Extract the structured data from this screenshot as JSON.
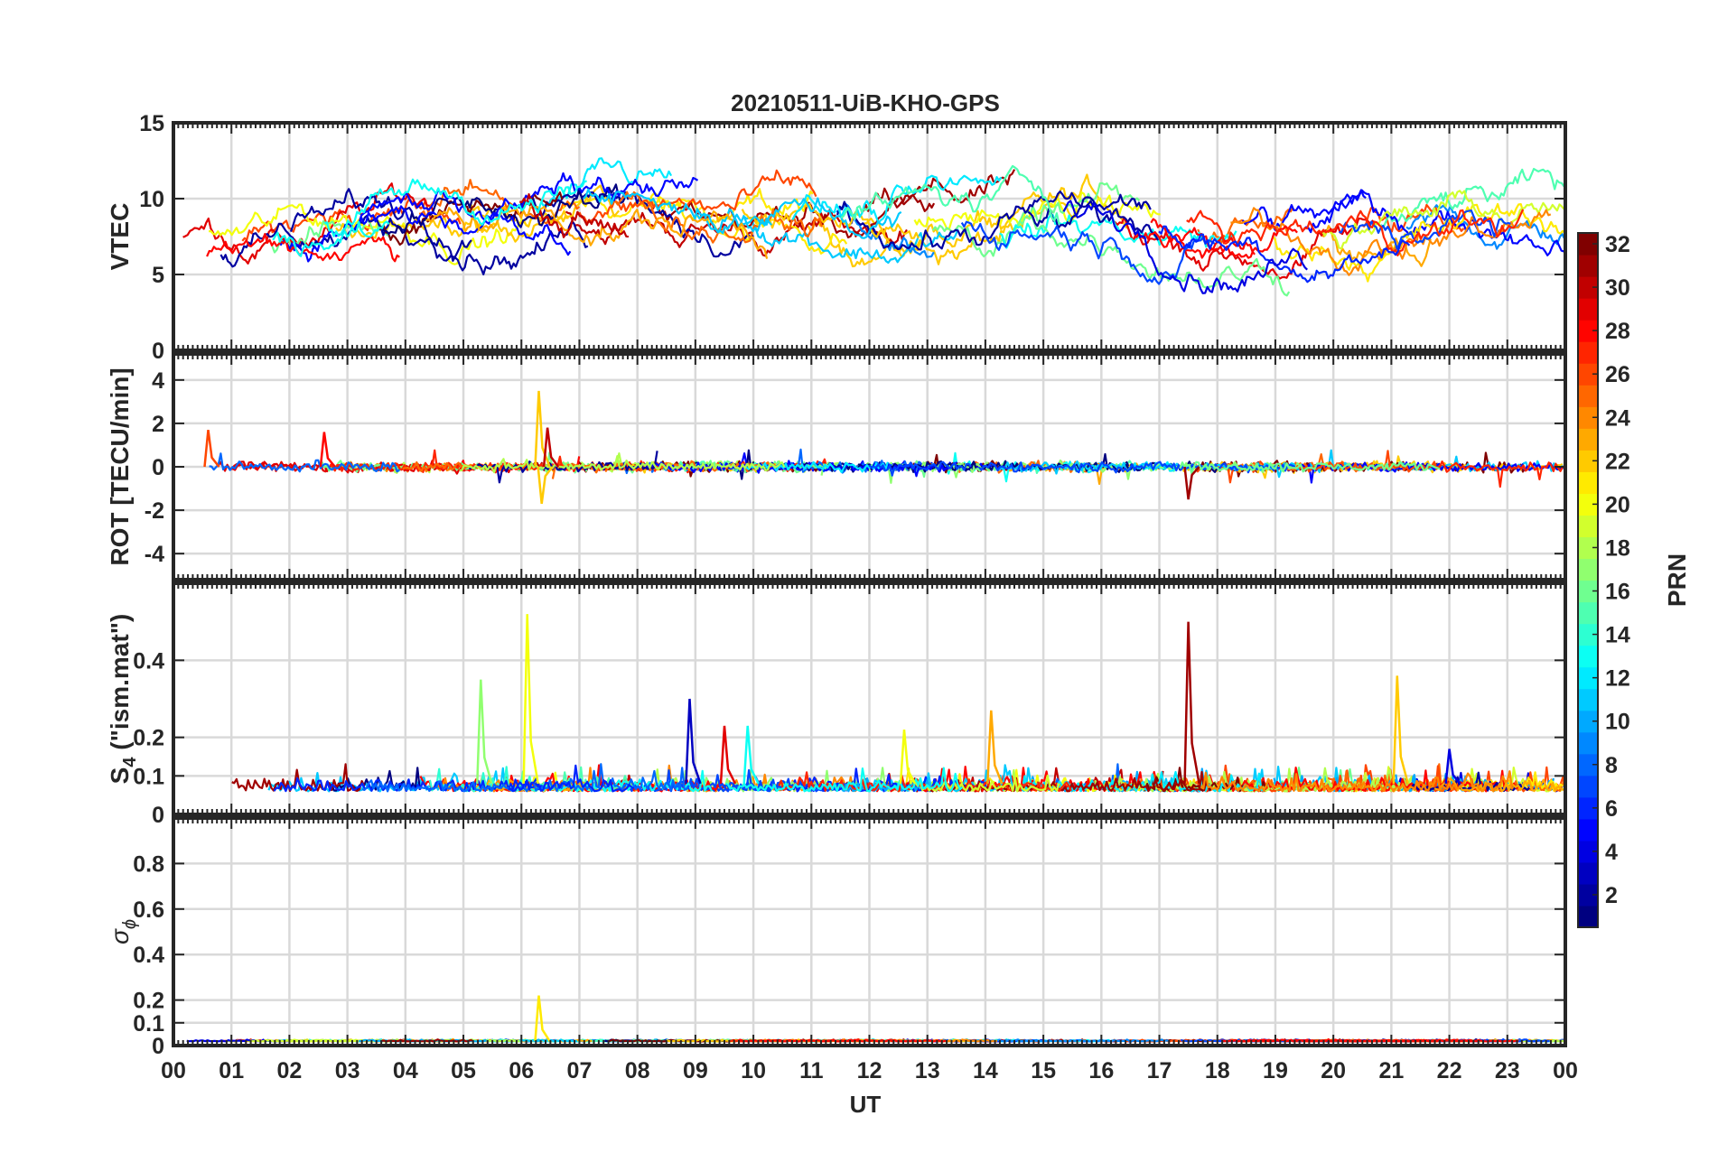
{
  "figure": {
    "title": "20210511-UiB-KHO-GPS"
  },
  "chart_data": [
    {
      "type": "line",
      "panel": "vtec",
      "ylabel": "VTEC",
      "ylim": [
        0,
        15
      ],
      "yticks": [
        "0",
        "5",
        "10",
        "15"
      ],
      "grid": true,
      "series_groups": [
        {
          "prn_range": [
            1,
            32
          ],
          "trend_hourly": [
            6.8,
            7.2,
            7.5,
            8.0,
            8.6,
            9.0,
            9.3,
            9.4,
            9.3,
            9.0,
            8.8,
            8.7,
            8.4,
            8.3,
            8.4,
            8.8,
            8.7,
            8.3,
            8.0,
            7.8,
            7.9,
            8.3,
            8.6,
            8.7,
            8.6
          ]
        }
      ]
    },
    {
      "type": "line",
      "panel": "rot",
      "ylabel": "ROT [TECU/min]",
      "ylim": [
        -5.2,
        5.2
      ],
      "yticks": [
        "-4",
        "-2",
        "0",
        "2",
        "4"
      ],
      "grid": true,
      "spikes": [
        {
          "ut": 0.6,
          "value": 1.7,
          "prn": 26
        },
        {
          "ut": 2.6,
          "value": 1.6,
          "prn": 28
        },
        {
          "ut": 6.3,
          "value": 3.5,
          "prn": 22
        },
        {
          "ut": 6.35,
          "value": -1.7,
          "prn": 22
        },
        {
          "ut": 6.45,
          "value": 1.8,
          "prn": 30
        },
        {
          "ut": 17.5,
          "value": -1.5,
          "prn": 31
        }
      ]
    },
    {
      "type": "line",
      "panel": "s4",
      "ylabel_main": "S",
      "ylabel_sub": "4",
      "ylabel_rest": " (\"ism.mat\")",
      "ylim": [
        0,
        0.6
      ],
      "yticks": [
        "0",
        "0.1",
        "0.2",
        "0.4"
      ],
      "ytick_values": [
        0,
        0.1,
        0.2,
        0.4
      ],
      "grid": true,
      "spikes": [
        {
          "ut": 5.3,
          "value": 0.35,
          "prn": 17
        },
        {
          "ut": 6.1,
          "value": 0.52,
          "prn": 20
        },
        {
          "ut": 8.9,
          "value": 0.3,
          "prn": 3
        },
        {
          "ut": 9.5,
          "value": 0.23,
          "prn": 29
        },
        {
          "ut": 9.9,
          "value": 0.23,
          "prn": 13
        },
        {
          "ut": 12.6,
          "value": 0.22,
          "prn": 20
        },
        {
          "ut": 14.1,
          "value": 0.27,
          "prn": 23
        },
        {
          "ut": 17.5,
          "value": 0.5,
          "prn": 31
        },
        {
          "ut": 21.1,
          "value": 0.36,
          "prn": 22
        },
        {
          "ut": 22.0,
          "value": 0.17,
          "prn": 4
        }
      ]
    },
    {
      "type": "line",
      "panel": "sigma_phi",
      "ylabel_main": "σ",
      "ylabel_sub": "ϕ",
      "ylim": [
        0,
        1.0
      ],
      "yticks": [
        "0",
        "0.1",
        "0.2",
        "0.4",
        "0.6",
        "0.8"
      ],
      "ytick_values": [
        0,
        0.1,
        0.2,
        0.4,
        0.6,
        0.8
      ],
      "grid": true,
      "spikes": [
        {
          "ut": 6.3,
          "value": 0.22,
          "prn": 21
        }
      ]
    }
  ],
  "xaxis": {
    "label": "UT",
    "range": [
      0,
      24
    ],
    "ticks": [
      "00",
      "01",
      "02",
      "03",
      "04",
      "05",
      "06",
      "07",
      "08",
      "09",
      "10",
      "11",
      "12",
      "13",
      "14",
      "15",
      "16",
      "17",
      "18",
      "19",
      "20",
      "21",
      "22",
      "23",
      "00"
    ]
  },
  "colorbar": {
    "label": "PRN",
    "range": [
      1,
      32
    ],
    "ticks": [
      "2",
      "4",
      "6",
      "8",
      "10",
      "12",
      "14",
      "16",
      "18",
      "20",
      "22",
      "24",
      "26",
      "28",
      "30",
      "32"
    ],
    "colormap": "jet"
  },
  "colors": {
    "axis": "#262626",
    "grid": "#d9d9d9",
    "background": "#ffffff"
  }
}
